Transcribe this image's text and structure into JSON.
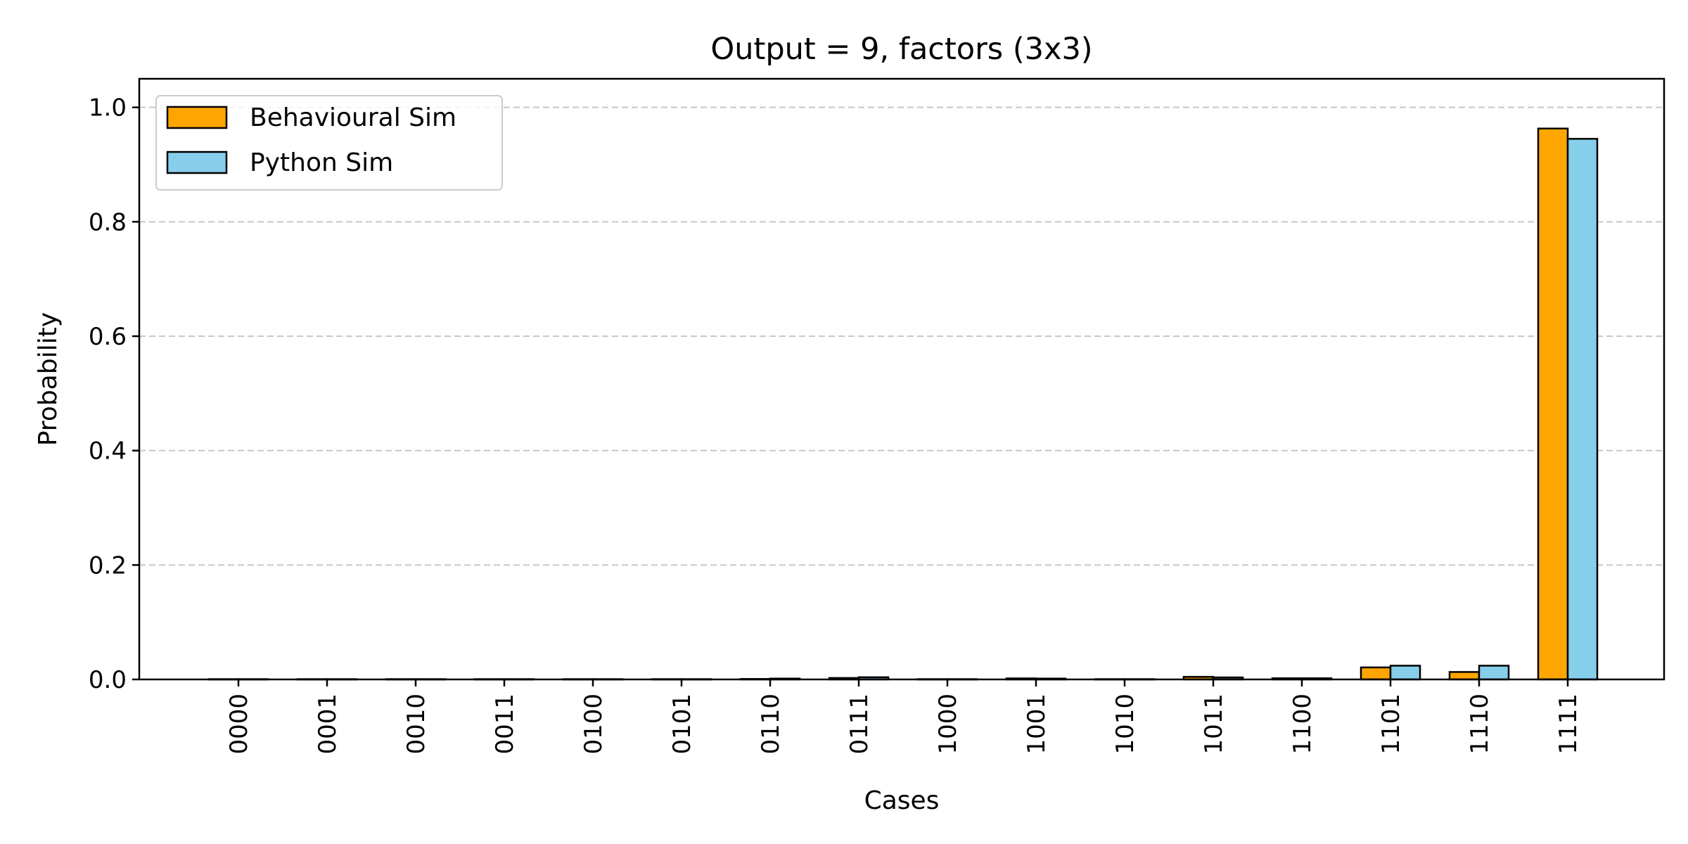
{
  "chart_data": {
    "type": "bar",
    "title": "Output = 9, factors (3x3)",
    "xlabel": "Cases",
    "ylabel": "Probability",
    "ylim": [
      0,
      1.0
    ],
    "yticks": [
      "0.0",
      "0.2",
      "0.4",
      "0.6",
      "0.8",
      "1.0"
    ],
    "grid": "y-dashed",
    "legend_position": "top-left",
    "categories": [
      "0000",
      "0001",
      "0010",
      "0011",
      "0100",
      "0101",
      "0110",
      "0111",
      "1000",
      "1001",
      "1010",
      "1011",
      "1100",
      "1101",
      "1110",
      "1111"
    ],
    "series": [
      {
        "name": "Behavioural Sim",
        "color": "#FFA500",
        "values": [
          0.0005,
          0.0005,
          0.0005,
          0.0005,
          0.0005,
          0.0005,
          0.0008,
          0.0025,
          0.0005,
          0.0018,
          0.0005,
          0.0045,
          0.002,
          0.021,
          0.013,
          0.963
        ]
      },
      {
        "name": "Python Sim",
        "color": "#87CEEB",
        "values": [
          0.0005,
          0.0005,
          0.0005,
          0.0005,
          0.0005,
          0.0005,
          0.0015,
          0.0038,
          0.0005,
          0.0015,
          0.0005,
          0.0035,
          0.002,
          0.024,
          0.024,
          0.945
        ]
      }
    ]
  }
}
